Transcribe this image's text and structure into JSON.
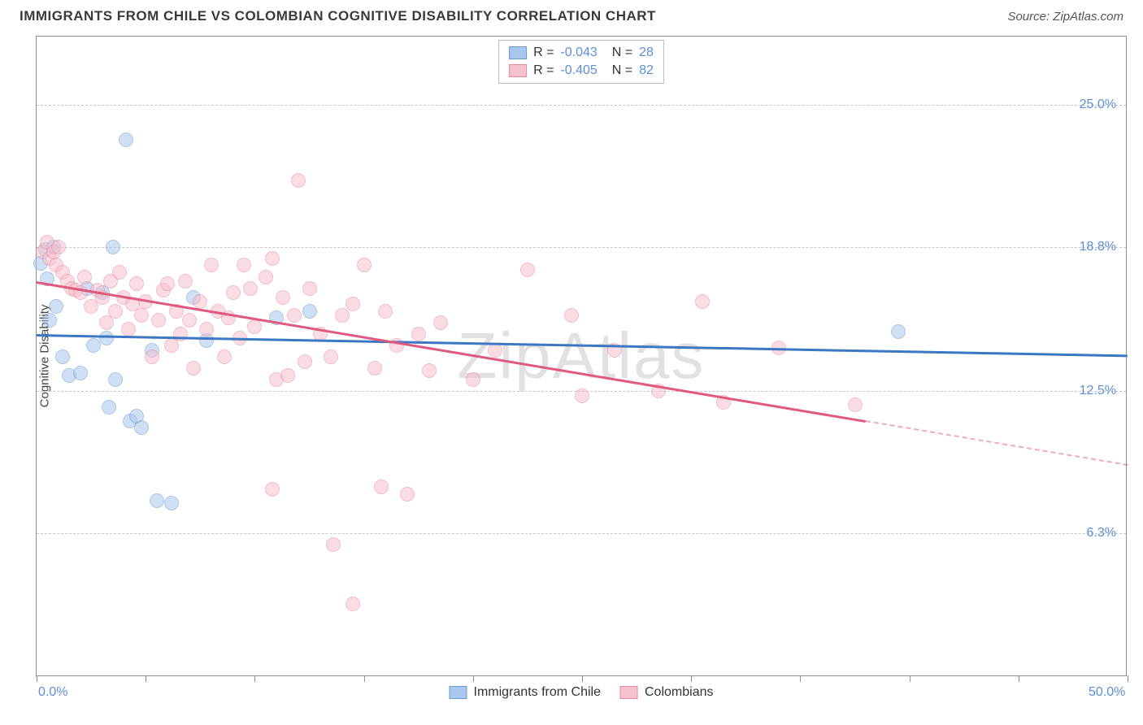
{
  "title": "IMMIGRANTS FROM CHILE VS COLOMBIAN COGNITIVE DISABILITY CORRELATION CHART",
  "source": "Source: ZipAtlas.com",
  "watermark": "ZipAtlas",
  "ylabel": "Cognitive Disability",
  "chart": {
    "type": "scatter",
    "xlim": [
      0,
      50
    ],
    "ylim": [
      0,
      28
    ],
    "background_color": "#ffffff",
    "grid_color": "#c8c8c8",
    "border_color": "#8f8f8f",
    "yticks": [
      {
        "v": 6.3,
        "label": "6.3%"
      },
      {
        "v": 12.5,
        "label": "12.5%"
      },
      {
        "v": 18.8,
        "label": "18.8%"
      },
      {
        "v": 25.0,
        "label": "25.0%"
      }
    ],
    "xticks": [
      0,
      5,
      10,
      15,
      20,
      25,
      30,
      35,
      40,
      45,
      50
    ],
    "xlabels": [
      {
        "v": 0,
        "label": "0.0%"
      },
      {
        "v": 50,
        "label": "50.0%"
      }
    ],
    "point_radius": 9,
    "point_opacity": 0.55,
    "series": [
      {
        "name": "Immigrants from Chile",
        "color_fill": "#a9c6ec",
        "color_stroke": "#6d9ad4",
        "line_color": "#3c78c3",
        "R": "-0.043",
        "N": "28",
        "trend": {
          "x1": 0,
          "y1": 15.0,
          "x2": 50,
          "y2": 14.1,
          "solid_end_x": 50
        },
        "points": [
          [
            0.2,
            18.1
          ],
          [
            0.4,
            18.7
          ],
          [
            0.5,
            17.4
          ],
          [
            0.8,
            18.8
          ],
          [
            0.6,
            15.6
          ],
          [
            0.9,
            16.2
          ],
          [
            1.2,
            14.0
          ],
          [
            1.5,
            13.2
          ],
          [
            2.0,
            13.3
          ],
          [
            2.3,
            17.0
          ],
          [
            2.6,
            14.5
          ],
          [
            3.0,
            16.8
          ],
          [
            3.2,
            14.8
          ],
          [
            3.3,
            11.8
          ],
          [
            3.6,
            13.0
          ],
          [
            4.1,
            23.5
          ],
          [
            4.3,
            11.2
          ],
          [
            4.6,
            11.4
          ],
          [
            4.8,
            10.9
          ],
          [
            5.3,
            14.3
          ],
          [
            5.5,
            7.7
          ],
          [
            6.2,
            7.6
          ],
          [
            7.2,
            16.6
          ],
          [
            7.8,
            14.7
          ],
          [
            11.0,
            15.7
          ],
          [
            12.5,
            16.0
          ],
          [
            39.5,
            15.1
          ],
          [
            3.5,
            18.8
          ]
        ]
      },
      {
        "name": "Colombians",
        "color_fill": "#f6c1cd",
        "color_stroke": "#e98aa2",
        "line_color": "#e05a7e",
        "R": "-0.405",
        "N": "82",
        "trend": {
          "x1": 0,
          "y1": 17.3,
          "x2": 50,
          "y2": 9.3,
          "solid_end_x": 38
        },
        "points": [
          [
            0.3,
            18.6
          ],
          [
            0.5,
            19.0
          ],
          [
            0.6,
            18.3
          ],
          [
            0.8,
            18.6
          ],
          [
            0.9,
            18.0
          ],
          [
            1.0,
            18.8
          ],
          [
            1.2,
            17.7
          ],
          [
            1.4,
            17.3
          ],
          [
            1.6,
            17.0
          ],
          [
            1.8,
            16.9
          ],
          [
            2.0,
            16.8
          ],
          [
            2.2,
            17.5
          ],
          [
            2.5,
            16.2
          ],
          [
            2.8,
            16.9
          ],
          [
            3.0,
            16.6
          ],
          [
            3.2,
            15.5
          ],
          [
            3.4,
            17.3
          ],
          [
            3.6,
            16.0
          ],
          [
            3.8,
            17.7
          ],
          [
            4.0,
            16.6
          ],
          [
            4.2,
            15.2
          ],
          [
            4.4,
            16.3
          ],
          [
            4.6,
            17.2
          ],
          [
            4.8,
            15.8
          ],
          [
            5.0,
            16.4
          ],
          [
            5.3,
            14.0
          ],
          [
            5.6,
            15.6
          ],
          [
            5.8,
            16.9
          ],
          [
            6.0,
            17.2
          ],
          [
            6.2,
            14.5
          ],
          [
            6.4,
            16.0
          ],
          [
            6.6,
            15.0
          ],
          [
            6.8,
            17.3
          ],
          [
            7.0,
            15.6
          ],
          [
            7.2,
            13.5
          ],
          [
            7.5,
            16.4
          ],
          [
            7.8,
            15.2
          ],
          [
            8.0,
            18.0
          ],
          [
            8.3,
            16.0
          ],
          [
            8.6,
            14.0
          ],
          [
            8.8,
            15.7
          ],
          [
            9.0,
            16.8
          ],
          [
            9.3,
            14.8
          ],
          [
            9.5,
            18.0
          ],
          [
            9.8,
            17.0
          ],
          [
            10.0,
            15.3
          ],
          [
            10.5,
            17.5
          ],
          [
            10.8,
            18.3
          ],
          [
            11.0,
            13.0
          ],
          [
            11.3,
            16.6
          ],
          [
            11.5,
            13.2
          ],
          [
            11.8,
            15.8
          ],
          [
            12.0,
            21.7
          ],
          [
            12.3,
            13.8
          ],
          [
            12.5,
            17.0
          ],
          [
            13.0,
            15.0
          ],
          [
            13.5,
            14.0
          ],
          [
            13.6,
            5.8
          ],
          [
            14.0,
            15.8
          ],
          [
            14.5,
            16.3
          ],
          [
            15.0,
            18.0
          ],
          [
            15.5,
            13.5
          ],
          [
            15.8,
            8.3
          ],
          [
            16.0,
            16.0
          ],
          [
            16.5,
            14.5
          ],
          [
            17.0,
            8.0
          ],
          [
            17.5,
            15.0
          ],
          [
            18.0,
            13.4
          ],
          [
            18.5,
            15.5
          ],
          [
            14.5,
            3.2
          ],
          [
            20.0,
            13.0
          ],
          [
            21.0,
            14.3
          ],
          [
            22.5,
            17.8
          ],
          [
            24.5,
            15.8
          ],
          [
            25.0,
            12.3
          ],
          [
            26.5,
            14.3
          ],
          [
            28.5,
            12.5
          ],
          [
            30.5,
            16.4
          ],
          [
            31.5,
            12.0
          ],
          [
            34.0,
            14.4
          ],
          [
            37.5,
            11.9
          ],
          [
            10.8,
            8.2
          ]
        ]
      }
    ]
  }
}
